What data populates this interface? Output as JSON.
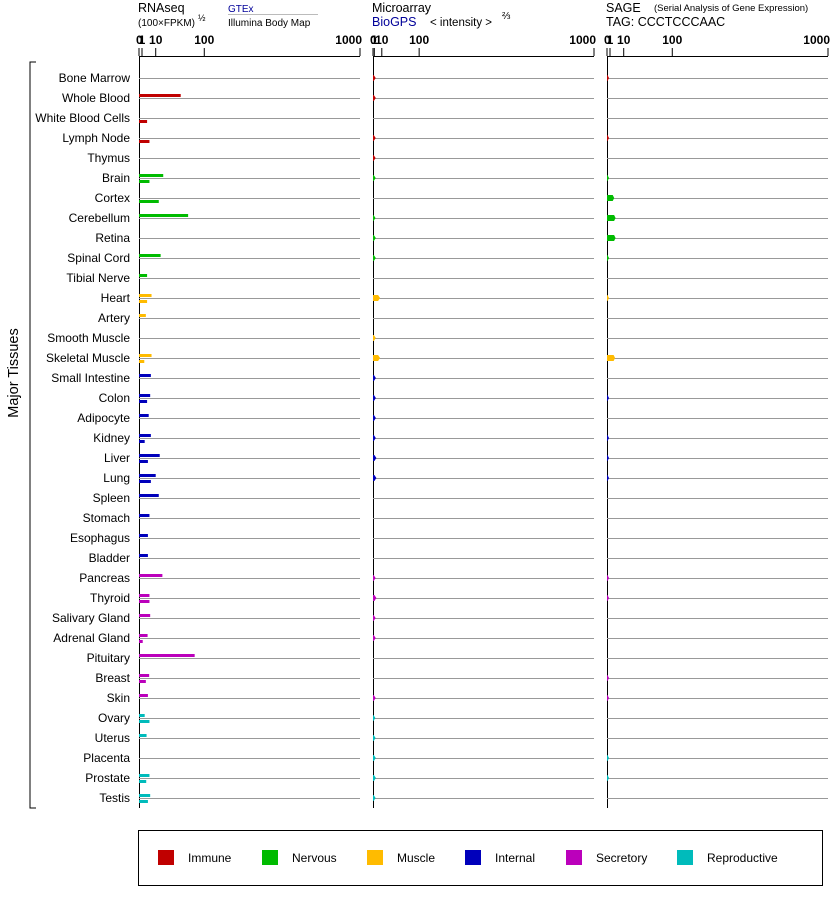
{
  "header": {
    "rnaseq_title": "RNAseq",
    "rnaseq_units": "(100×FPKM)",
    "rnaseq_exp": "½",
    "gtex_label": "GTEx",
    "ibm_label": "Illumina Body Map",
    "microarray_title": "Microarray",
    "biogps_label": "BioGPS",
    "intensity_label": "< intensity >",
    "intensity_exp": "⅔",
    "sage_title": "SAGE",
    "sage_subtitle": "(Serial Analysis of Gene Expression)",
    "sage_tag": "TAG: CCCTCCCAAC"
  },
  "y_axis_title": "Major Tissues",
  "ticks": [
    "0",
    "1",
    "10",
    "100",
    "1000"
  ],
  "legend": [
    {
      "label": "Immune",
      "color": "#c00000"
    },
    {
      "label": "Nervous",
      "color": "#00bb00"
    },
    {
      "label": "Muscle",
      "color": "#ffbb00"
    },
    {
      "label": "Internal",
      "color": "#0000bb"
    },
    {
      "label": "Secretory",
      "color": "#bb00bb"
    },
    {
      "label": "Reproductive",
      "color": "#00bbbb"
    }
  ],
  "chart_data": {
    "type": "bar",
    "orientation": "horizontal",
    "x_scale": "power-compressed (ticks 0, 1, 10, 100, 1000)",
    "panels": [
      "RNAseq",
      "Microarray",
      "SAGE"
    ],
    "tissues": [
      {
        "name": "Bone Marrow",
        "system": "Immune",
        "gtex": null,
        "ibm": null,
        "microarray": 2.3,
        "sage": 0.05
      },
      {
        "name": "Whole Blood",
        "system": "Immune",
        "gtex": 45,
        "ibm": null,
        "microarray": 2.4,
        "sage": null
      },
      {
        "name": "White Blood Cells",
        "system": "Immune",
        "gtex": null,
        "ibm": 3.5,
        "microarray": null,
        "sage": null
      },
      {
        "name": "Lymph Node",
        "system": "Immune",
        "gtex": null,
        "ibm": 5,
        "microarray": 2.3,
        "sage": 0.05
      },
      {
        "name": "Thymus",
        "system": "Immune",
        "gtex": null,
        "ibm": null,
        "microarray": 2.2,
        "sage": null
      },
      {
        "name": "Brain",
        "system": "Nervous",
        "gtex": 18,
        "ibm": 5,
        "microarray": 2.3,
        "sage": 0.05
      },
      {
        "name": "Cortex",
        "system": "Nervous",
        "gtex": null,
        "ibm": 13,
        "microarray": null,
        "sage": 3.0
      },
      {
        "name": "Cerebellum",
        "system": "Nervous",
        "gtex": 60,
        "ibm": null,
        "microarray": 2.1,
        "sage": 3.8
      },
      {
        "name": "Retina",
        "system": "Nervous",
        "gtex": null,
        "ibm": null,
        "microarray": 2.4,
        "sage": 3.8
      },
      {
        "name": "Spinal Cord",
        "system": "Nervous",
        "gtex": 15,
        "ibm": null,
        "microarray": 2.4,
        "sage": 0.05
      },
      {
        "name": "Tibial Nerve",
        "system": "Nervous",
        "gtex": 3.5,
        "ibm": null,
        "microarray": null,
        "sage": null
      },
      {
        "name": "Heart",
        "system": "Muscle",
        "gtex": 6.5,
        "ibm": 3.5,
        "microarray": 7.5,
        "sage": 0.03
      },
      {
        "name": "Artery",
        "system": "Muscle",
        "gtex": 2.8,
        "ibm": null,
        "microarray": null,
        "sage": null
      },
      {
        "name": "Smooth Muscle",
        "system": "Muscle",
        "gtex": null,
        "ibm": null,
        "microarray": 2.4,
        "sage": null
      },
      {
        "name": "Skeletal Muscle",
        "system": "Muscle",
        "gtex": 6.5,
        "ibm": 2.0,
        "microarray": 7.5,
        "sage": 3.5
      },
      {
        "name": "Small Intestine",
        "system": "Internal",
        "gtex": 6,
        "ibm": null,
        "microarray": 2.5,
        "sage": null
      },
      {
        "name": "Colon",
        "system": "Internal",
        "gtex": 5.5,
        "ibm": 3.5,
        "microarray": 2.5,
        "sage": 0.05
      },
      {
        "name": "Adipocyte",
        "system": "Internal",
        "gtex": 4.5,
        "ibm": null,
        "microarray": 2.5,
        "sage": null
      },
      {
        "name": "Kidney",
        "system": "Internal",
        "gtex": 6,
        "ibm": 2.2,
        "microarray": 2.4,
        "sage": 0.05
      },
      {
        "name": "Liver",
        "system": "Internal",
        "gtex": 14,
        "ibm": 4,
        "microarray": 3.0,
        "sage": 0.05
      },
      {
        "name": "Lung",
        "system": "Internal",
        "gtex": 10,
        "ibm": 6,
        "microarray": 3.0,
        "sage": 0.05
      },
      {
        "name": "Spleen",
        "system": "Internal",
        "gtex": 13,
        "ibm": null,
        "microarray": null,
        "sage": null
      },
      {
        "name": "Stomach",
        "system": "Internal",
        "gtex": 5,
        "ibm": null,
        "microarray": null,
        "sage": null
      },
      {
        "name": "Esophagus",
        "system": "Internal",
        "gtex": 4,
        "ibm": null,
        "microarray": null,
        "sage": null
      },
      {
        "name": "Bladder",
        "system": "Internal",
        "gtex": 4,
        "ibm": null,
        "microarray": null,
        "sage": null
      },
      {
        "name": "Pancreas",
        "system": "Secretory",
        "gtex": 17,
        "ibm": null,
        "microarray": 2.2,
        "sage": 0.05
      },
      {
        "name": "Thyroid",
        "system": "Secretory",
        "gtex": 5,
        "ibm": 5,
        "microarray": 3.0,
        "sage": 0.05
      },
      {
        "name": "Salivary Gland",
        "system": "Secretory",
        "gtex": 5.5,
        "ibm": null,
        "microarray": 2.2,
        "sage": null
      },
      {
        "name": "Adrenal Gland",
        "system": "Secretory",
        "gtex": 3.8,
        "ibm": 1.3,
        "microarray": 2.3,
        "sage": null
      },
      {
        "name": "Pituitary",
        "system": "Secretory",
        "gtex": 75,
        "ibm": null,
        "microarray": null,
        "sage": null
      },
      {
        "name": "Breast",
        "system": "Secretory",
        "gtex": 4.8,
        "ibm": 2.8,
        "microarray": null,
        "sage": 0.05
      },
      {
        "name": "Skin",
        "system": "Secretory",
        "gtex": 4,
        "ibm": null,
        "microarray": 2.3,
        "sage": 0.05
      },
      {
        "name": "Ovary",
        "system": "Reproductive",
        "gtex": 2.2,
        "ibm": 5,
        "microarray": 2.0,
        "sage": null
      },
      {
        "name": "Uterus",
        "system": "Reproductive",
        "gtex": 3.2,
        "ibm": null,
        "microarray": 2.2,
        "sage": null
      },
      {
        "name": "Placenta",
        "system": "Reproductive",
        "gtex": null,
        "ibm": null,
        "microarray": 2.4,
        "sage": 0.05
      },
      {
        "name": "Prostate",
        "system": "Reproductive",
        "gtex": 5,
        "ibm": 3,
        "microarray": 2.5,
        "sage": 0.05
      },
      {
        "name": "Testis",
        "system": "Reproductive",
        "gtex": 5.5,
        "ibm": 4,
        "microarray": 2.2,
        "sage": null
      }
    ]
  }
}
